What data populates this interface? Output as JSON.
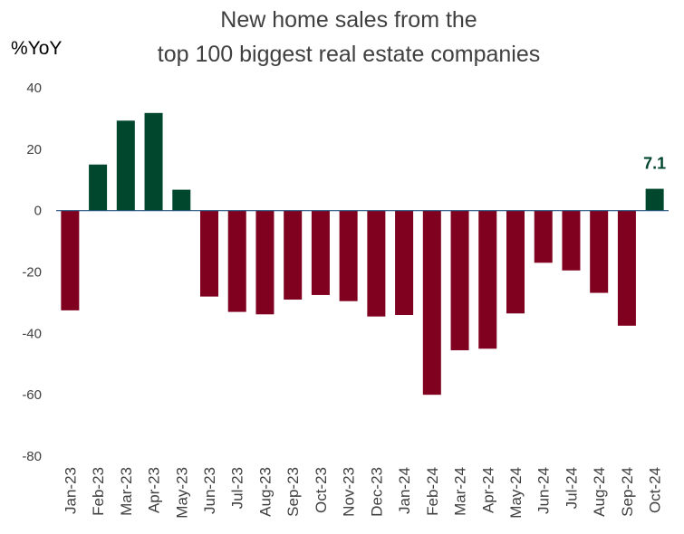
{
  "chart_data": {
    "type": "bar",
    "title_lines": [
      "New home sales  from the",
      "top 100 biggest real estate companies"
    ],
    "ylabel": "%YoY",
    "xlabel": "",
    "ylim": [
      -80,
      40
    ],
    "yticks": [
      40,
      20,
      0,
      -20,
      -40,
      -60,
      -80
    ],
    "grid": false,
    "legend": "none",
    "categories": [
      "Jan-23",
      "Feb-23",
      "Mar-23",
      "Apr-23",
      "May-23",
      "Jun-23",
      "Jul-23",
      "Aug-23",
      "Sep-23",
      "Oct-23",
      "Nov-23",
      "Dec-23",
      "Jan-24",
      "Feb-24",
      "Mar-24",
      "Apr-24",
      "May-24",
      "Jun-24",
      "Jul-24",
      "Aug-24",
      "Sep-24",
      "Oct-24"
    ],
    "values": [
      -32.5,
      15.0,
      29.3,
      31.8,
      6.8,
      -28.0,
      -33.0,
      -33.8,
      -29.0,
      -27.5,
      -29.5,
      -34.5,
      -34.0,
      -60.0,
      -45.5,
      -45.0,
      -33.5,
      -17.0,
      -19.5,
      -26.8,
      -37.5,
      7.1
    ],
    "colors": {
      "positive": "#00472e",
      "negative": "#800020",
      "zero_line": "#1f4e79"
    },
    "annotations": [
      {
        "category": "Oct-24",
        "text": "7.1",
        "color": "#00472e"
      }
    ]
  }
}
